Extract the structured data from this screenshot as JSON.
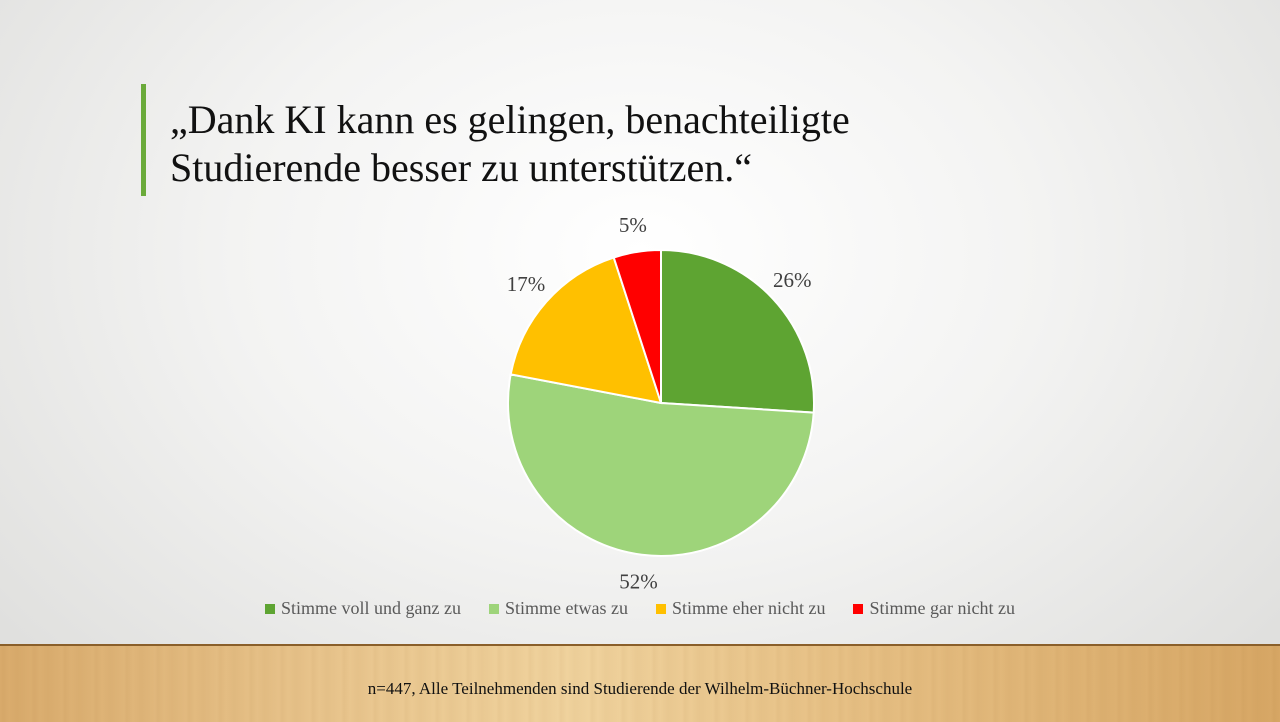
{
  "slide": {
    "title_line1": "„Dank KI kann es gelingen, benachteiligte",
    "title_line2": "Studierende besser zu unterstützen.“",
    "footnote": "n=447, Alle Teilnehmenden sind Studierende  der Wilhelm-Büchner-Hochschule",
    "accent_color": "#6aaa3a"
  },
  "chart_data": {
    "type": "pie",
    "categories": [
      "Stimme voll und ganz zu",
      "Stimme etwas zu",
      "Stimme eher nicht zu",
      "Stimme gar nicht zu"
    ],
    "values": [
      26,
      52,
      17,
      5
    ],
    "data_labels": [
      "26%",
      "52%",
      "17%",
      "5%"
    ],
    "colors": [
      "#5ea432",
      "#9ed47a",
      "#ffc000",
      "#ff0000"
    ],
    "legend_position": "bottom",
    "start_angle": "top, clockwise"
  }
}
